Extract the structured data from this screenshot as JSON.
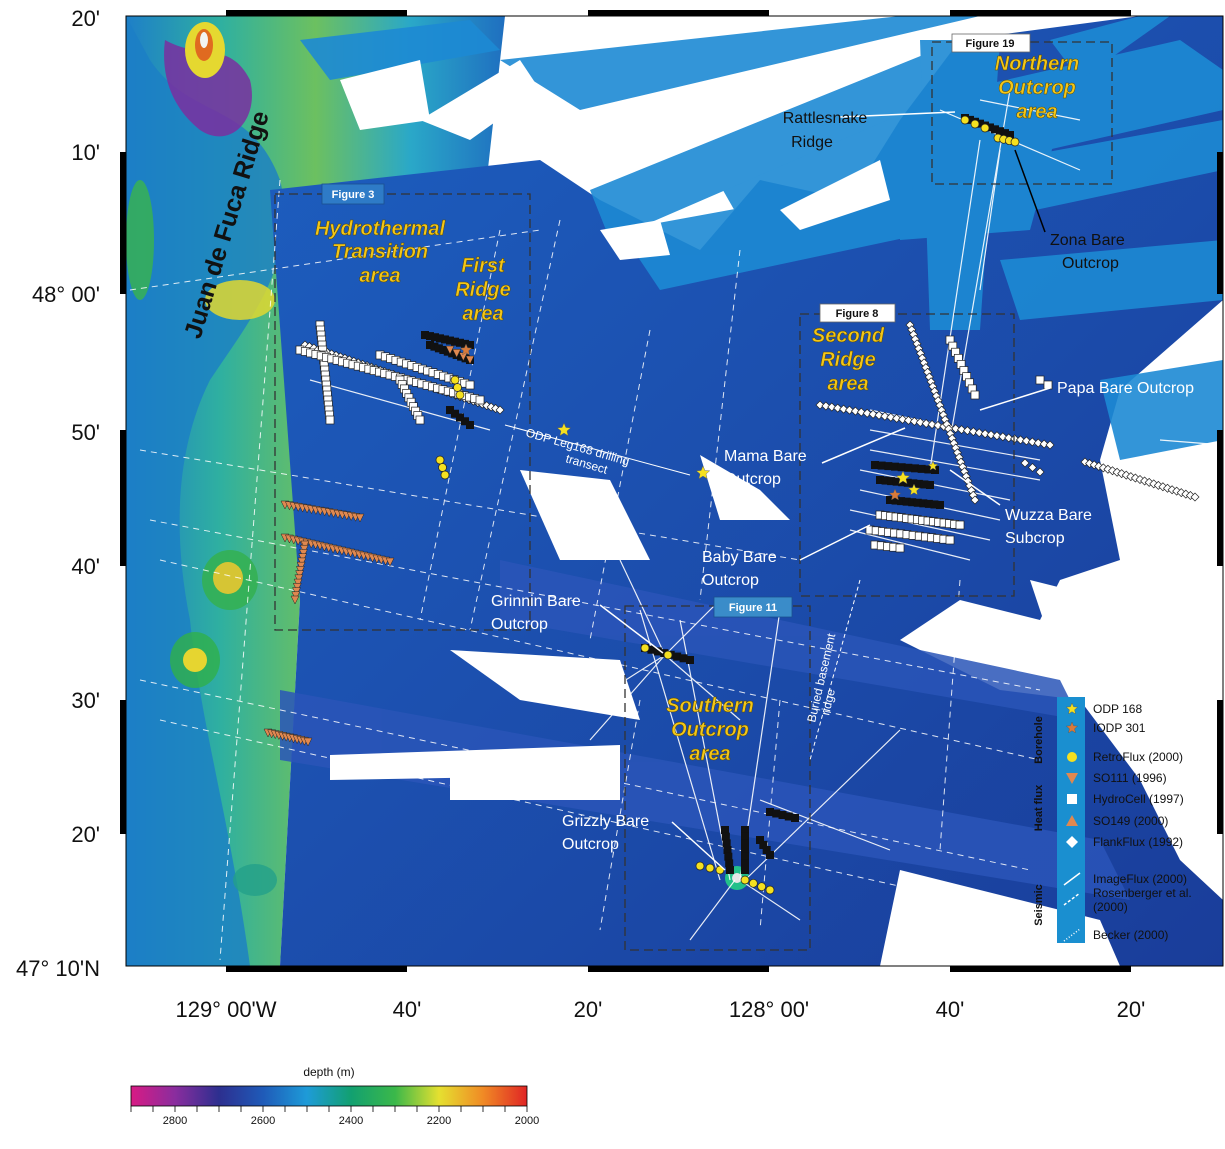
{
  "map": {
    "frame": {
      "left_lon": -129.2,
      "right_lon": -127.2,
      "top_lat": 48.3333,
      "bottom_lat": 47.1667
    },
    "lat_ticks": [
      "20'",
      "10'",
      "48° 00'",
      "50'",
      "40'",
      "30'",
      "20'",
      "47° 10'N"
    ],
    "lon_ticks": [
      "129° 00'W",
      "40'",
      "20'",
      "128° 00'",
      "40'",
      "20'"
    ],
    "ridge_label": "Juan de Fuca Ridge",
    "figure_boxes": [
      {
        "label": "Figure 3"
      },
      {
        "label": "Figure 19"
      },
      {
        "label": "Figure 8"
      },
      {
        "label": "Figure 11"
      }
    ],
    "area_labels": {
      "hydrothermal": [
        "Hydrothermal",
        "Transition",
        "area"
      ],
      "first_ridge": [
        "First",
        "Ridge",
        "area"
      ],
      "second_ridge": [
        "Second",
        "Ridge",
        "area"
      ],
      "northern": [
        "Northern",
        "Outcrop",
        "area"
      ],
      "southern": [
        "Southern",
        "Outcrop",
        "area"
      ]
    },
    "site_labels": {
      "rattlesnake": [
        "Rattlesnake",
        "Ridge"
      ],
      "zona": [
        "Zona Bare",
        "Outcrop"
      ],
      "papa": [
        "Papa Bare Outcrop"
      ],
      "mama": [
        "Mama Bare",
        "Outcrop"
      ],
      "wuzza": [
        "Wuzza Bare",
        "Subcrop"
      ],
      "baby": [
        "Baby Bare",
        "Outcrop"
      ],
      "grinnin": [
        "Grinnin Bare",
        "Outcrop"
      ],
      "grizzly": [
        "Grizzly Bare",
        "Outcrop"
      ]
    },
    "transect_label": [
      "ODP Leg168 drilling",
      "transect"
    ],
    "buried_ridge_label": [
      "Buried basement",
      "ridge"
    ]
  },
  "legend": {
    "groups": [
      "Borehole",
      "Heat flux",
      "Seismic"
    ],
    "items": [
      {
        "label": "ODP 168",
        "symbol": "star",
        "color": "#f5e020"
      },
      {
        "label": "IODP 301",
        "symbol": "star",
        "color": "#d97a3a"
      },
      {
        "label": "RetroFlux (2000)",
        "symbol": "circle",
        "color": "#f5e020"
      },
      {
        "label": "SO111 (1996)",
        "symbol": "triangle-down",
        "color": "#e08850"
      },
      {
        "label": "HydroCell (1997)",
        "symbol": "square",
        "color": "#ffffff"
      },
      {
        "label": "SO149 (2000)",
        "symbol": "triangle-up",
        "color": "#e08850"
      },
      {
        "label": "FlankFlux (1992)",
        "symbol": "diamond",
        "color": "#ffffff"
      },
      {
        "label": "ImageFlux (2000)",
        "symbol": "solid-line",
        "color": "#ffffff"
      },
      {
        "label": "Rosenberger et al. (2000)",
        "symbol": "dashed-line",
        "color": "#ffffff"
      },
      {
        "label": "Becker (2000)",
        "symbol": "dotted-line",
        "color": "#ffffff"
      }
    ]
  },
  "colorbar": {
    "title": "depth (m)",
    "ticks": [
      "2800",
      "2600",
      "2400",
      "2200",
      "2000"
    ],
    "range": [
      2900,
      2000
    ],
    "colors": [
      "#d81b84",
      "#8a2d9e",
      "#2d2f8f",
      "#1f5ab8",
      "#1e9bd8",
      "#12a070",
      "#3bb84a",
      "#e5e030",
      "#f08a25",
      "#e02525"
    ]
  }
}
